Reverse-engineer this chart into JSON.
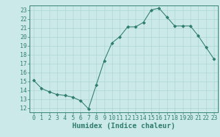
{
  "x": [
    0,
    1,
    2,
    3,
    4,
    5,
    6,
    7,
    8,
    9,
    10,
    11,
    12,
    13,
    14,
    15,
    16,
    17,
    18,
    19,
    20,
    21,
    22,
    23
  ],
  "y": [
    15.1,
    14.2,
    13.8,
    13.5,
    13.4,
    13.2,
    12.8,
    11.9,
    14.6,
    17.3,
    19.3,
    20.0,
    21.1,
    21.1,
    21.6,
    23.0,
    23.2,
    22.2,
    21.2,
    21.2,
    21.2,
    20.1,
    18.8,
    17.5
  ],
  "line_color": "#2e7d6e",
  "marker": "D",
  "marker_size": 2.2,
  "bg_color": "#cce9e9",
  "grid_color": "#aad4d4",
  "xlabel": "Humidex (Indice chaleur)",
  "ylim": [
    11.5,
    23.5
  ],
  "xlim": [
    -0.5,
    23.5
  ],
  "yticks": [
    12,
    13,
    14,
    15,
    16,
    17,
    18,
    19,
    20,
    21,
    22,
    23
  ],
  "xticks": [
    0,
    1,
    2,
    3,
    4,
    5,
    6,
    7,
    8,
    9,
    10,
    11,
    12,
    13,
    14,
    15,
    16,
    17,
    18,
    19,
    20,
    21,
    22,
    23
  ],
  "tick_fontsize": 6,
  "label_fontsize": 7.5
}
